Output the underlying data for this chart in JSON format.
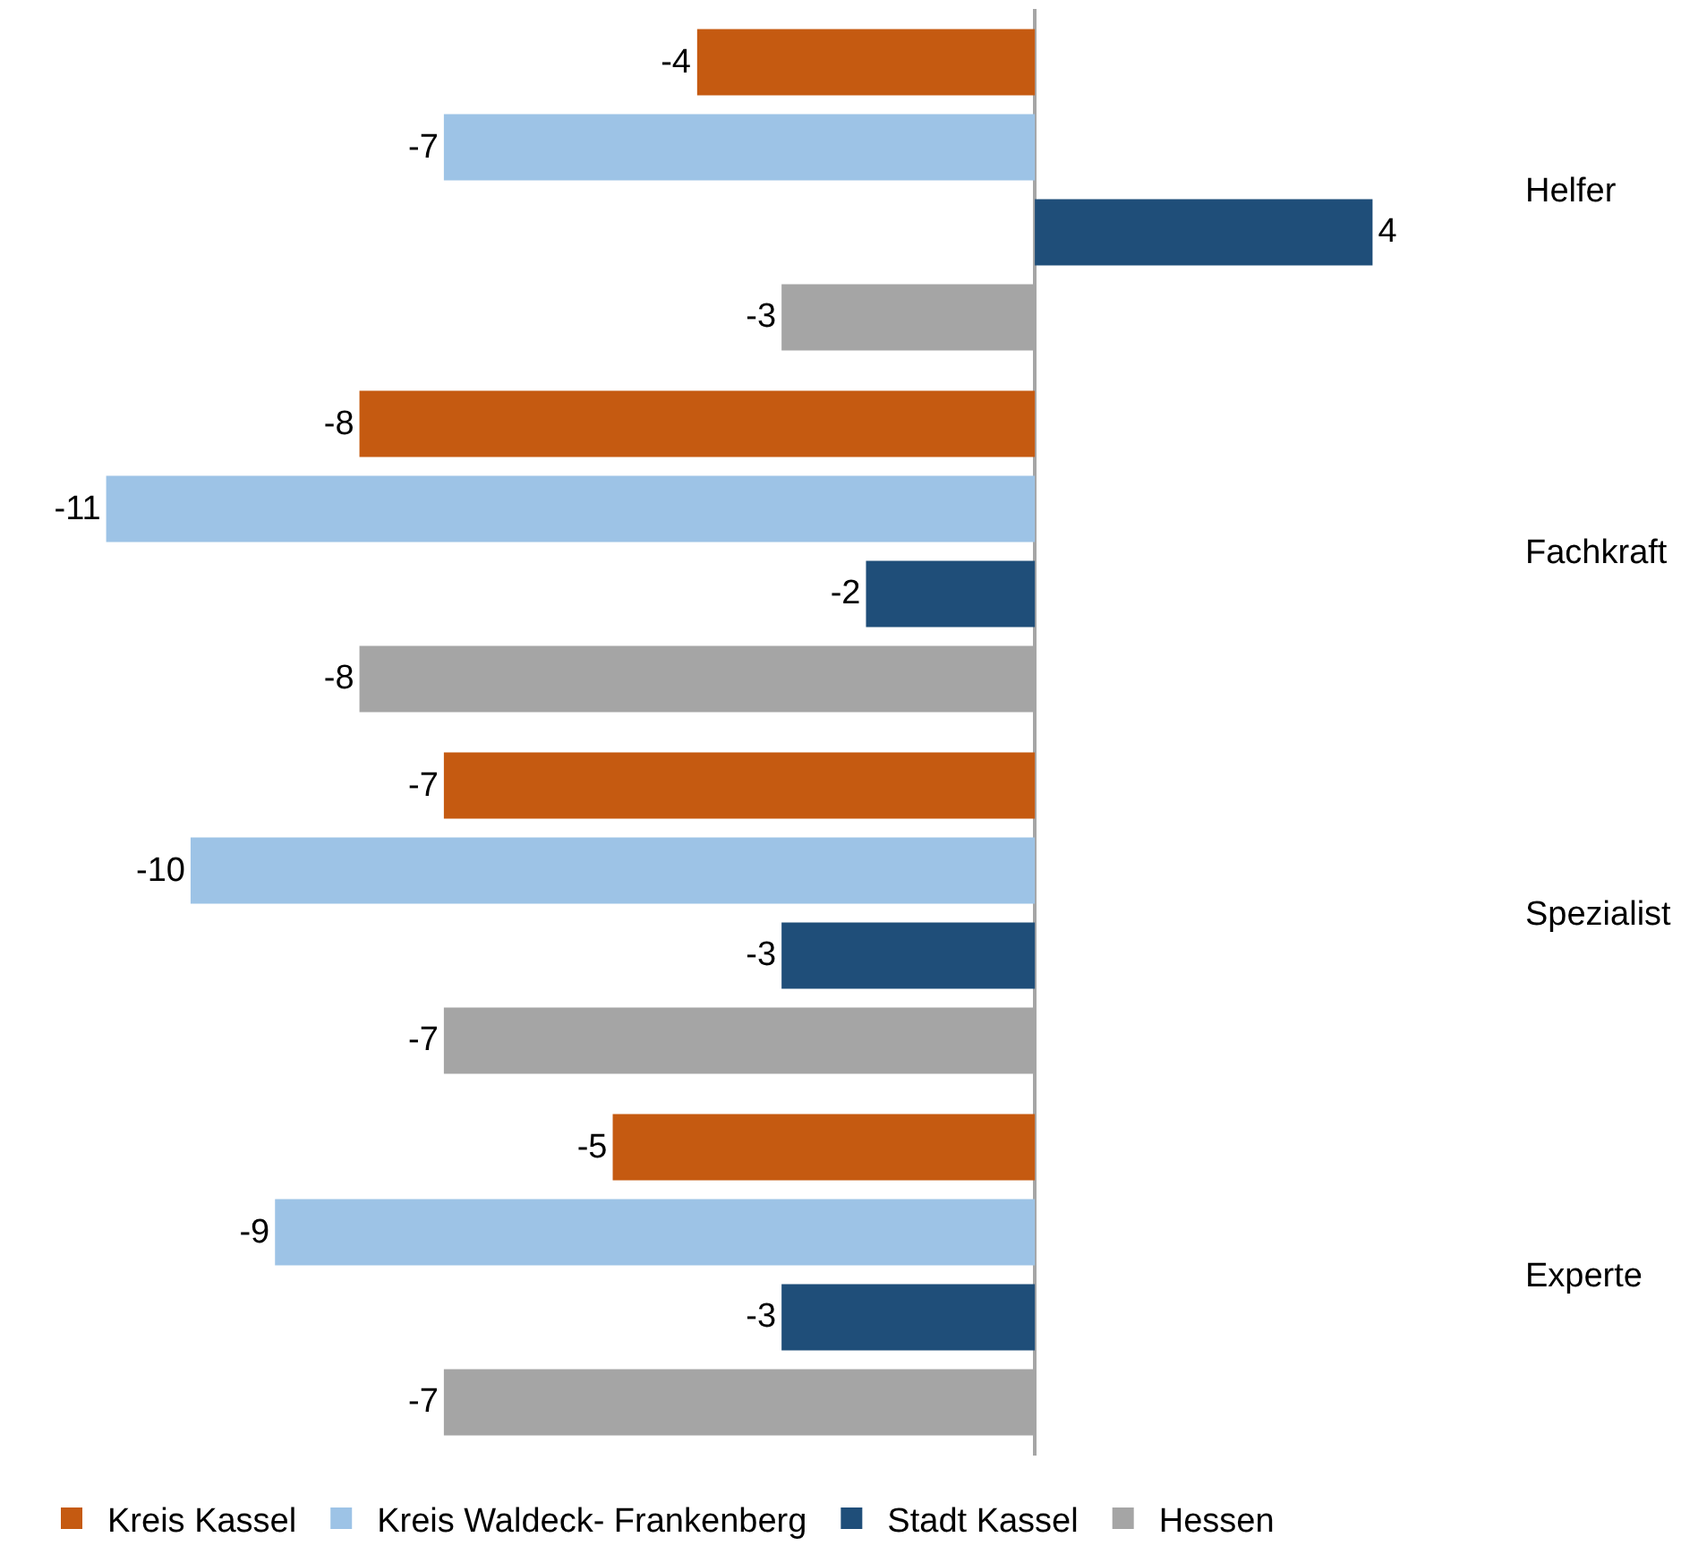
{
  "chart_data": {
    "type": "bar",
    "orientation": "horizontal",
    "categories": [
      "Helfer",
      "Fachkraft",
      "Spezialist",
      "Experte"
    ],
    "series": [
      {
        "name": "Kreis Kassel",
        "color": "#c55a11",
        "values": [
          -4,
          -8,
          -7,
          -5
        ]
      },
      {
        "name": "Kreis Waldeck- Frankenberg",
        "color": "#9dc3e6",
        "values": [
          -7,
          -11,
          -10,
          -9
        ]
      },
      {
        "name": "Stadt Kassel",
        "color": "#1f4e79",
        "values": [
          4,
          -2,
          -3,
          -3
        ]
      },
      {
        "name": "Hessen",
        "color": "#a5a5a5",
        "values": [
          -3,
          -8,
          -7,
          -7
        ]
      }
    ],
    "data_labels": true,
    "legend": "bottom",
    "tick_labels": "y"
  }
}
